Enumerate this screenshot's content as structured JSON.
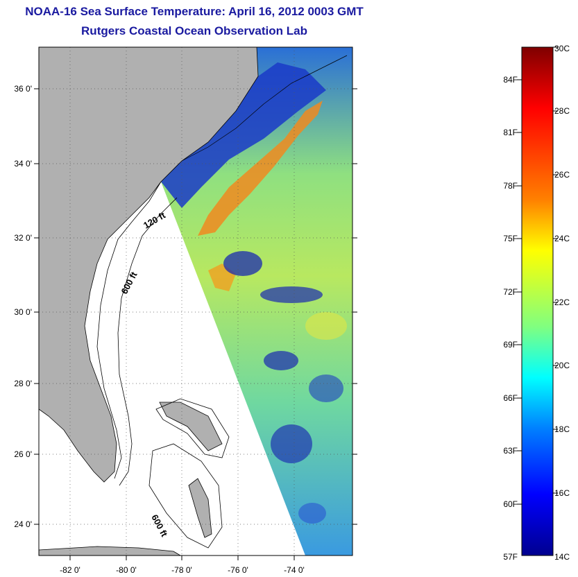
{
  "header": {
    "title": "NOAA-16 Sea Surface Temperature:  April 16, 2012 0003 GMT",
    "subtitle": "Rutgers Coastal Ocean Observation Lab"
  },
  "map": {
    "lon_ticks": [
      "-82 0'",
      "-80 0'",
      "-78 0'",
      "-76 0'",
      "-74 0'"
    ],
    "lat_ticks": [
      "36 0'",
      "34 0'",
      "32 0'",
      "30 0'",
      "28 0'",
      "26 0'",
      "24 0'"
    ],
    "contour_labels": [
      "120 ft",
      "600 ft",
      "600 ft"
    ],
    "land_color": "#b0b0b0",
    "grid": "dotted"
  },
  "colorbar": {
    "fahrenheit_labels": [
      "84F",
      "81F",
      "78F",
      "75F",
      "72F",
      "69F",
      "66F",
      "63F",
      "60F",
      "57F"
    ],
    "celsius_labels": [
      "30C",
      "28C",
      "26C",
      "24C",
      "22C",
      "20C",
      "18C",
      "16C",
      "14C"
    ],
    "colormap": [
      "#7f0000",
      "#ff0000",
      "#ff8000",
      "#ffff00",
      "#80ff80",
      "#00ffff",
      "#0080ff",
      "#0000ff",
      "#00008f"
    ]
  }
}
